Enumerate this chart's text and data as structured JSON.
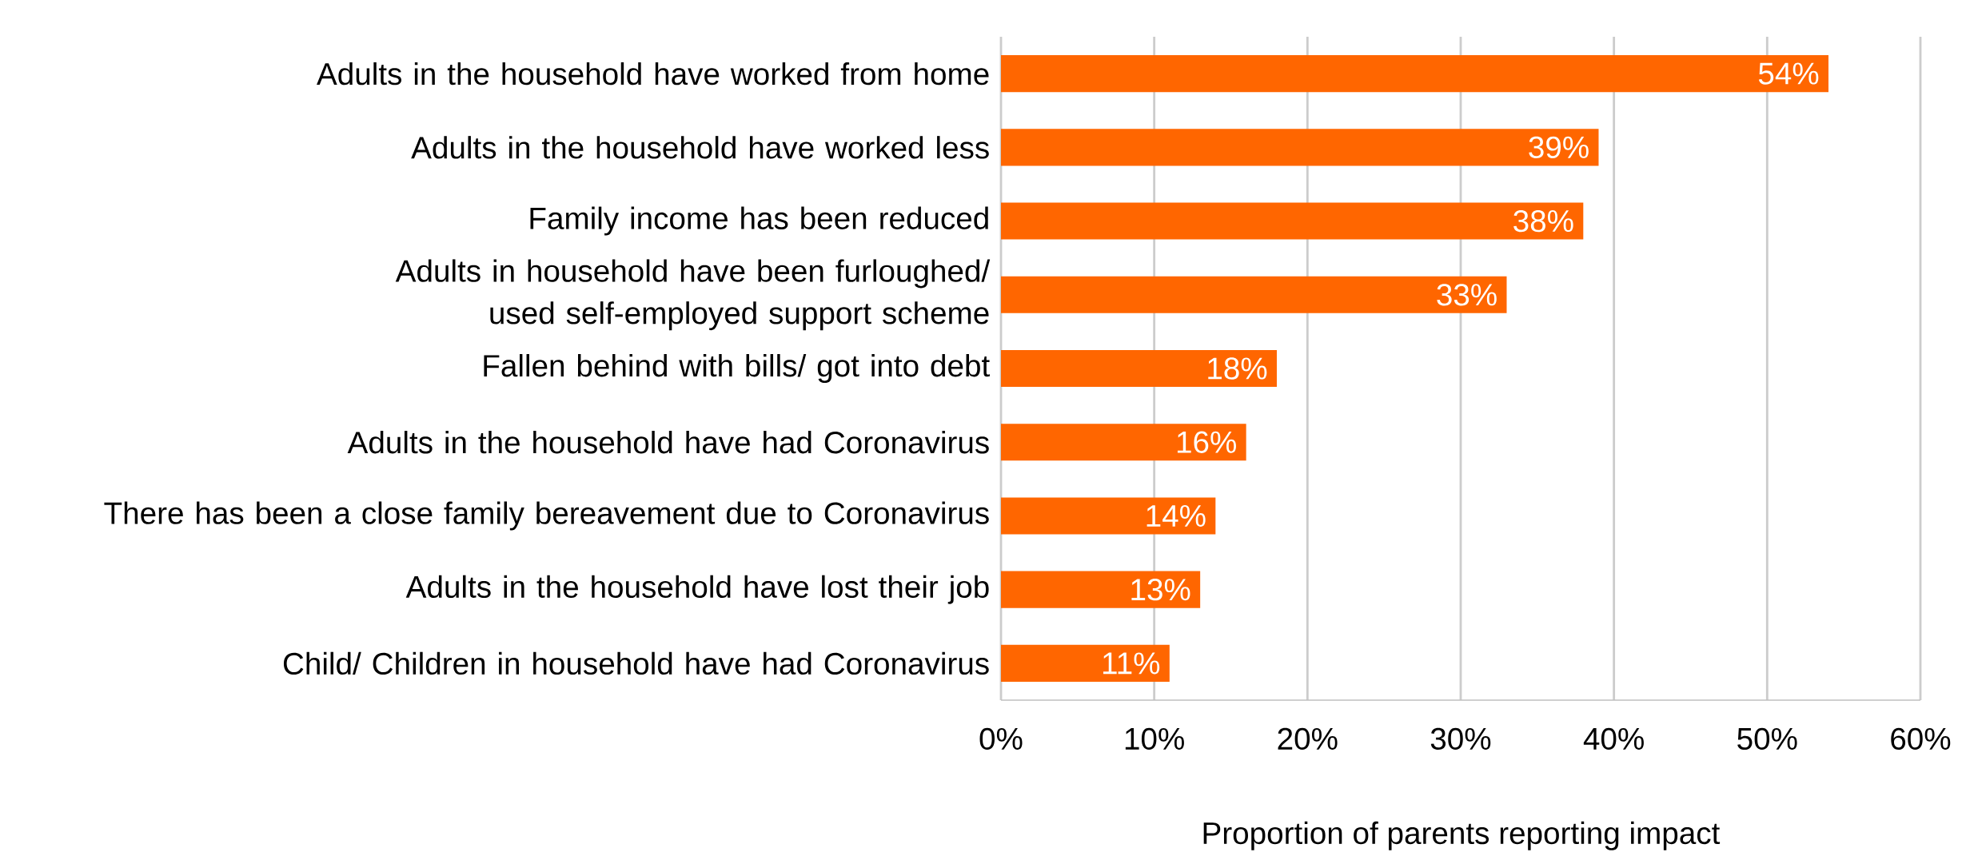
{
  "chart_data": {
    "type": "bar",
    "orientation": "horizontal",
    "xlabel": "Proportion of parents reporting impact",
    "categories": [
      "Adults in the household have worked from home",
      "Adults in the household have worked less",
      "Family income has been reduced",
      "Adults in household have been furloughed/ used self-employed support scheme",
      "Fallen behind with bills/ got into debt",
      "Adults in the household have had Coronavirus",
      "There has been a close family bereavement due to Coronavirus",
      "Adults in the household have lost their job",
      "Child/ Children in household have had Coronavirus"
    ],
    "values": [
      54,
      39,
      38,
      33,
      18,
      16,
      14,
      13,
      11
    ],
    "value_labels": [
      "54%",
      "39%",
      "38%",
      "33%",
      "18%",
      "16%",
      "14%",
      "13%",
      "11%"
    ],
    "color": "#ff6600",
    "xlim": [
      0,
      60
    ],
    "xticks": [
      {
        "value": 0,
        "label": "0%"
      },
      {
        "value": 10,
        "label": "10%"
      },
      {
        "value": 20,
        "label": "20%"
      },
      {
        "value": 30,
        "label": "30%"
      },
      {
        "value": 40,
        "label": "40%"
      },
      {
        "value": 50,
        "label": "50%"
      },
      {
        "value": 60,
        "label": "60%"
      }
    ],
    "grid": "x"
  }
}
